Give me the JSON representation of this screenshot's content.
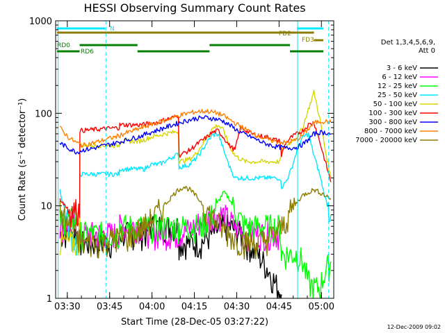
{
  "chart_data": {
    "type": "line",
    "title": "HESSI Observing Summary Count Rates",
    "xlabel": "Start Time (28-Dec-05 03:27:22)",
    "ylabel": "Count Rate (s⁻¹ detector⁻¹)",
    "y_scale": "log",
    "xlim_minutes_after_0327": [
      -1.5,
      97
    ],
    "ylim": [
      1,
      1000
    ],
    "x_ticks": [
      "03:30",
      "03:45",
      "04:00",
      "04:15",
      "04:30",
      "04:45",
      "05:00"
    ],
    "y_ticks": [
      "1",
      "10",
      "100",
      "1000"
    ],
    "footer_timestamp": "12-Dec-2009 09:02",
    "legend_header": [
      "Det 1,3,4,5,6,9,",
      "Att 0"
    ],
    "colors": {
      "3 - 6 keV": "#000000",
      "6 - 12 keV": "#ff00ff",
      "12 - 25 keV": "#00ff00",
      "25 - 50 keV": "#00e8ff",
      "50 - 100 keV": "#d6d600",
      "100 - 300 keV": "#ff0000",
      "300 - 800 keV": "#0000ff",
      "800 - 7000 keV": "#ff8000",
      "7000 - 20000 keV": "#8b7d00"
    },
    "series": [
      {
        "name": "3 - 6 keV",
        "x": [
          0,
          7,
          7.1,
          21,
          21.2,
          28,
          30,
          32,
          35,
          37,
          42,
          42.2,
          48,
          50,
          52,
          54,
          56,
          58,
          60,
          62,
          64,
          66,
          68,
          70,
          72,
          74,
          76,
          78,
          78.5
        ],
        "y": [
          5,
          5,
          4,
          4,
          5,
          5,
          5,
          6,
          6,
          6,
          6,
          4,
          4,
          4,
          4.5,
          5,
          5.5,
          6,
          6,
          5.5,
          5,
          4,
          3.5,
          3,
          2.5,
          2,
          1.5,
          1.2,
          1.1
        ]
      },
      {
        "name": "6 - 12 keV",
        "x": [
          0,
          7,
          7.1,
          21,
          21.2,
          28,
          30,
          32,
          35,
          37,
          42,
          42.2,
          48,
          50,
          52,
          54,
          56,
          58,
          60,
          62,
          64,
          66,
          68,
          70,
          72,
          74,
          76,
          78,
          78.5
        ],
        "y": [
          6,
          6,
          5,
          5,
          6,
          6,
          6,
          5,
          5,
          5,
          5,
          5,
          6,
          7,
          7,
          8,
          8,
          8,
          7,
          6,
          5.5,
          5,
          5,
          5,
          5,
          5,
          5,
          5,
          5
        ]
      },
      {
        "name": "12 - 25 keV",
        "x": [
          0,
          7,
          7.1,
          21,
          21.2,
          28,
          30,
          32,
          35,
          37,
          40,
          42,
          42.2,
          46,
          48,
          50,
          52,
          54,
          56,
          58,
          60,
          62,
          64,
          66,
          68,
          70,
          72,
          74,
          76,
          78,
          78.5,
          80,
          82,
          84,
          86,
          88,
          90,
          92,
          94,
          96
        ],
        "y": [
          7,
          7,
          5,
          5,
          6,
          6,
          6,
          6,
          6,
          6,
          6,
          6,
          6,
          6,
          6,
          6,
          7,
          8,
          11,
          14,
          12,
          9,
          7,
          6,
          6,
          6,
          6,
          6,
          6,
          6,
          3,
          3,
          3,
          3,
          2.5,
          1.5,
          1.3,
          1.3,
          2,
          2.5
        ]
      },
      {
        "name": "25 - 50 keV",
        "x": [
          0,
          2,
          4,
          6,
          7,
          7.1,
          21,
          21.2,
          28,
          30,
          32,
          35,
          37,
          40,
          42,
          42.2,
          46,
          48,
          50,
          52,
          54,
          56,
          57,
          58,
          60,
          62,
          64,
          66,
          68,
          70,
          72,
          74,
          76,
          78,
          78.5,
          80,
          82,
          84,
          86,
          88,
          90,
          92,
          94,
          96
        ],
        "y": [
          15,
          8,
          5,
          4,
          3,
          22,
          22,
          25,
          25,
          25,
          28,
          28,
          30,
          34,
          36,
          26,
          28,
          32,
          38,
          48,
          58,
          60,
          50,
          40,
          27,
          20,
          20,
          20,
          20,
          20,
          20,
          20,
          20,
          20,
          16,
          18,
          25,
          40,
          55,
          60,
          35,
          22,
          12,
          8
        ]
      },
      {
        "name": "50 - 100 keV",
        "x": [
          0,
          7,
          7.1,
          21,
          21.2,
          28,
          30,
          32,
          35,
          37,
          40,
          42,
          42.2,
          46,
          48,
          50,
          52,
          54,
          56,
          58,
          60,
          62,
          64,
          66,
          68,
          70,
          72,
          74,
          76,
          78,
          78.5,
          80,
          82,
          84,
          86,
          88,
          90,
          92,
          94,
          96
        ],
        "y": [
          4,
          4,
          45,
          45,
          50,
          50,
          52,
          55,
          58,
          60,
          62,
          64,
          30,
          32,
          36,
          44,
          55,
          68,
          75,
          65,
          45,
          35,
          32,
          30,
          30,
          30,
          30,
          30,
          30,
          30,
          40,
          43,
          50,
          55,
          70,
          110,
          170,
          90,
          40,
          20
        ]
      },
      {
        "name": "100 - 300 keV",
        "x": [
          0,
          2,
          4,
          6,
          7,
          7.1,
          21,
          21.2,
          28,
          30,
          32,
          35,
          37,
          40,
          42,
          42.2,
          46,
          48,
          50,
          52,
          54,
          56,
          58,
          60,
          62,
          64,
          66,
          68,
          70,
          72,
          74,
          76,
          78,
          78.5,
          80,
          82,
          84,
          86,
          88,
          90,
          92,
          94,
          96
        ],
        "y": [
          12,
          10,
          9,
          9,
          9,
          65,
          70,
          75,
          75,
          76,
          78,
          80,
          85,
          90,
          95,
          35,
          40,
          45,
          50,
          55,
          62,
          65,
          55,
          45,
          40,
          70,
          65,
          60,
          58,
          56,
          55,
          52,
          50,
          35,
          48,
          55,
          60,
          65,
          75,
          80,
          50,
          30,
          18
        ]
      },
      {
        "name": "300 - 800 keV",
        "x": [
          0,
          3,
          6,
          8,
          12,
          16,
          20,
          24,
          28,
          32,
          36,
          40,
          44,
          48,
          52,
          56,
          58,
          60,
          64,
          68,
          72,
          76,
          80,
          84,
          86,
          88,
          90,
          92,
          94,
          96
        ],
        "y": [
          48,
          42,
          38,
          40,
          42,
          45,
          48,
          52,
          56,
          62,
          68,
          75,
          82,
          88,
          90,
          86,
          82,
          75,
          62,
          55,
          48,
          44,
          42,
          43,
          46,
          52,
          60,
          62,
          62,
          60
        ]
      },
      {
        "name": "800 - 7000 keV",
        "x": [
          0,
          3,
          6,
          8,
          12,
          16,
          20,
          24,
          28,
          32,
          36,
          40,
          44,
          48,
          52,
          56,
          58,
          60,
          64,
          68,
          72,
          76,
          80,
          84,
          86,
          88,
          90,
          92,
          94,
          96
        ],
        "y": [
          70,
          55,
          48,
          45,
          48,
          52,
          56,
          62,
          68,
          75,
          82,
          90,
          98,
          104,
          106,
          100,
          94,
          86,
          72,
          62,
          54,
          50,
          48,
          52,
          58,
          68,
          78,
          82,
          82,
          80
        ]
      },
      {
        "name": "7000 - 20000 keV",
        "x": [
          0,
          2,
          4,
          6,
          8,
          10,
          12,
          14,
          16,
          18,
          20,
          22,
          24,
          26,
          28,
          30,
          32,
          34,
          36,
          38,
          40,
          42,
          44,
          46,
          48,
          50,
          52,
          54,
          56,
          58,
          60,
          62,
          64,
          66,
          68,
          70,
          72,
          74,
          76,
          78,
          80,
          82,
          84,
          86,
          88,
          90,
          92,
          94,
          96
        ],
        "y": [
          9,
          7,
          5.5,
          4.5,
          4,
          4,
          4,
          4,
          4.2,
          4.4,
          4.5,
          4.5,
          4.6,
          5,
          5.5,
          6,
          7,
          8,
          9.5,
          11,
          13,
          15,
          16,
          15,
          13,
          11,
          9,
          7.5,
          6.5,
          5.5,
          5,
          4.5,
          4.2,
          4,
          4,
          4,
          4.2,
          4.5,
          5,
          5.5,
          7,
          9,
          11,
          13,
          14,
          15,
          14,
          13,
          12
        ]
      }
    ],
    "attenuator_bars": [
      {
        "label": "N",
        "color": "#00e8ff",
        "segments": [
          [
            -1,
            16
          ],
          [
            84,
            97
          ]
        ]
      },
      {
        "label": "FD2",
        "color": "#8b7d00",
        "segments": [
          [
            -1,
            90
          ]
        ]
      },
      {
        "label": "FD3",
        "color": "#8b7d00",
        "segments": [
          [
            90,
            97
          ]
        ]
      },
      {
        "label": "RD0",
        "color": "#008000",
        "segments": [
          [
            7,
            27.5
          ],
          [
            53,
            81.5
          ]
        ]
      },
      {
        "label": "RD6",
        "color": "#008000",
        "segments": [
          [
            -1,
            7
          ],
          [
            27.5,
            53
          ],
          [
            81.5,
            97
          ]
        ]
      }
    ],
    "vertical_markers": [
      {
        "x": -0.6,
        "color": "#00e8ff",
        "style": "solid"
      },
      {
        "x": 16.3,
        "color": "#00e8ff",
        "style": "dashed"
      },
      {
        "x": 84.2,
        "color": "#00e8ff",
        "style": "solid"
      },
      {
        "x": 95.2,
        "color": "#00e8ff",
        "style": "dashed"
      }
    ]
  }
}
